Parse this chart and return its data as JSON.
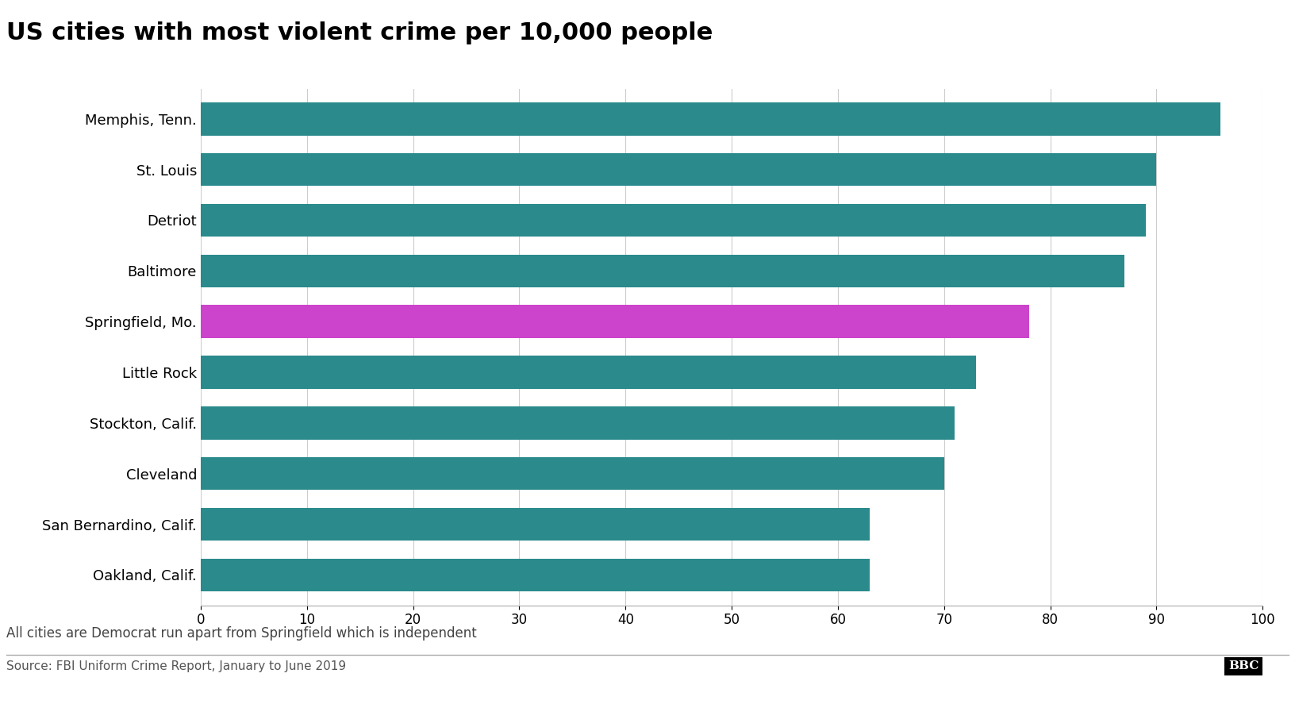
{
  "title": "US cities with most violent crime per 10,000 people",
  "cities": [
    "Memphis, Tenn.",
    "St. Louis",
    "Detriot",
    "Baltimore",
    "Springfield, Mo.",
    "Little Rock",
    "Stockton, Calif.",
    "Cleveland",
    "San Bernardino, Calif.",
    "Oakland, Calif."
  ],
  "values": [
    96,
    90,
    89,
    87,
    78,
    73,
    71,
    70,
    63,
    63
  ],
  "colors": [
    "#2a8a8c",
    "#2a8a8c",
    "#2a8a8c",
    "#2a8a8c",
    "#cc44cc",
    "#2a8a8c",
    "#2a8a8c",
    "#2a8a8c",
    "#2a8a8c",
    "#2a8a8c"
  ],
  "xlim": [
    0,
    100
  ],
  "xticks": [
    0,
    10,
    20,
    30,
    40,
    50,
    60,
    70,
    80,
    90,
    100
  ],
  "footnote": "All cities are Democrat run apart from Springfield which is independent",
  "source": "Source: FBI Uniform Crime Report, January to June 2019",
  "bbc_label": "BBC",
  "background_color": "#ffffff",
  "title_fontsize": 22,
  "label_fontsize": 13,
  "tick_fontsize": 12,
  "footnote_fontsize": 12,
  "source_fontsize": 11
}
